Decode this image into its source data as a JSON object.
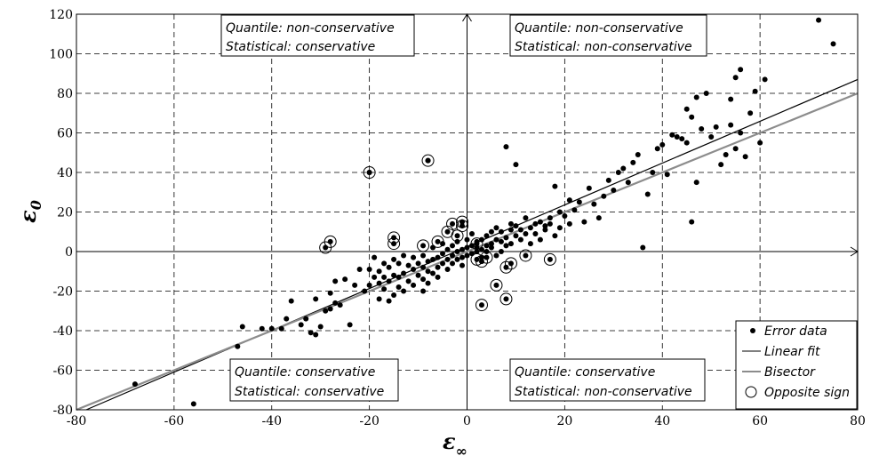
{
  "chart_data": {
    "type": "scatter",
    "xlabel": "ε",
    "xlabel_sub": "∞",
    "ylabel": "ε",
    "ylabel_sub": "0",
    "xlim": [
      -80,
      80
    ],
    "ylim": [
      -80,
      120
    ],
    "xticks": [
      -80,
      -60,
      -40,
      -20,
      0,
      20,
      40,
      60,
      80
    ],
    "yticks": [
      -80,
      -60,
      -40,
      -20,
      0,
      20,
      40,
      60,
      80,
      100,
      120
    ],
    "grid": true,
    "legend_position": "bottom-right",
    "legend": [
      "Error data",
      "Linear fit",
      "Bisector",
      "Opposite sign"
    ],
    "quadrant_labels": {
      "top_left": [
        "Quantile: non-conservative",
        "Statistical: conservative"
      ],
      "top_right": [
        "Quantile: non-conservative",
        "Statistical: non-conservative"
      ],
      "bottom_left": [
        "Quantile: conservative",
        "Statistical: conservative"
      ],
      "bottom_right": [
        "Quantile: conservative",
        "Statistical: non-conservative"
      ]
    },
    "series": [
      {
        "name": "Error data",
        "kind": "points",
        "color": "#000000",
        "points": [
          [
            -68,
            -67
          ],
          [
            -56,
            -77
          ],
          [
            -47,
            -48
          ],
          [
            -46,
            -38
          ],
          [
            -42,
            -39
          ],
          [
            -40,
            -39
          ],
          [
            -38,
            -39
          ],
          [
            -37,
            -34
          ],
          [
            -36,
            -25
          ],
          [
            -34,
            -37
          ],
          [
            -33,
            -34
          ],
          [
            -32,
            -41
          ],
          [
            -31,
            -42
          ],
          [
            -31,
            -24
          ],
          [
            -30,
            -38
          ],
          [
            -29,
            -30
          ],
          [
            -28,
            -29
          ],
          [
            -28,
            -21
          ],
          [
            -27,
            -26
          ],
          [
            -27,
            -15
          ],
          [
            -26,
            -27
          ],
          [
            -25,
            -14
          ],
          [
            -24,
            -37
          ],
          [
            -23,
            -17
          ],
          [
            -22,
            -9
          ],
          [
            -21,
            -20
          ],
          [
            -20,
            -17
          ],
          [
            -20,
            -9
          ],
          [
            -19,
            -3
          ],
          [
            -19,
            -13
          ],
          [
            -18,
            -24
          ],
          [
            -18,
            -16
          ],
          [
            -18,
            -10
          ],
          [
            -17,
            -19
          ],
          [
            -17,
            -13
          ],
          [
            -17,
            -6
          ],
          [
            -16,
            -25
          ],
          [
            -16,
            -15
          ],
          [
            -16,
            -8
          ],
          [
            -15,
            -22
          ],
          [
            -15,
            -12
          ],
          [
            -15,
            -4
          ],
          [
            -14,
            -18
          ],
          [
            -14,
            -13
          ],
          [
            -14,
            -6
          ],
          [
            -13,
            -20
          ],
          [
            -13,
            -11
          ],
          [
            -13,
            -2
          ],
          [
            -12,
            -15
          ],
          [
            -12,
            -7
          ],
          [
            -11,
            -17
          ],
          [
            -11,
            -9
          ],
          [
            -11,
            -3
          ],
          [
            -10,
            -12
          ],
          [
            -10,
            -6
          ],
          [
            -9,
            -20
          ],
          [
            -9,
            -14
          ],
          [
            -9,
            -8
          ],
          [
            -9,
            -2
          ],
          [
            -8,
            -10
          ],
          [
            -8,
            -5
          ],
          [
            -8,
            -16
          ],
          [
            -7,
            -11
          ],
          [
            -7,
            -4
          ],
          [
            -7,
            2
          ],
          [
            -6,
            -8
          ],
          [
            -6,
            -3
          ],
          [
            -6,
            -13
          ],
          [
            -5,
            -6
          ],
          [
            -5,
            -1
          ],
          [
            -5,
            4
          ],
          [
            -4,
            -9
          ],
          [
            -4,
            -4
          ],
          [
            -4,
            1
          ],
          [
            -3,
            -6
          ],
          [
            -3,
            -2
          ],
          [
            -3,
            3
          ],
          [
            -2,
            -4
          ],
          [
            -2,
            0
          ],
          [
            -2,
            5
          ],
          [
            -1,
            -3
          ],
          [
            -1,
            1
          ],
          [
            -1,
            -7
          ],
          [
            0,
            -2
          ],
          [
            0,
            2
          ],
          [
            0,
            6
          ],
          [
            1,
            -1
          ],
          [
            1,
            3
          ],
          [
            1,
            9
          ],
          [
            2,
            0
          ],
          [
            2,
            5
          ],
          [
            2,
            2
          ],
          [
            3,
            1
          ],
          [
            3,
            6
          ],
          [
            3,
            -3
          ],
          [
            4,
            3
          ],
          [
            4,
            8
          ],
          [
            4,
            0
          ],
          [
            5,
            4
          ],
          [
            5,
            10
          ],
          [
            5,
            2
          ],
          [
            6,
            6
          ],
          [
            6,
            12
          ],
          [
            6,
            -2
          ],
          [
            7,
            5
          ],
          [
            7,
            10
          ],
          [
            7,
            0
          ],
          [
            8,
            7
          ],
          [
            8,
            3
          ],
          [
            8,
            53
          ],
          [
            9,
            11
          ],
          [
            9,
            4
          ],
          [
            9,
            14
          ],
          [
            10,
            8
          ],
          [
            10,
            13
          ],
          [
            10,
            44
          ],
          [
            11,
            11
          ],
          [
            11,
            6
          ],
          [
            12,
            17
          ],
          [
            12,
            9
          ],
          [
            13,
            12
          ],
          [
            13,
            4
          ],
          [
            14,
            14
          ],
          [
            14,
            9
          ],
          [
            15,
            15
          ],
          [
            15,
            6
          ],
          [
            16,
            13
          ],
          [
            16,
            11
          ],
          [
            17,
            17
          ],
          [
            17,
            14
          ],
          [
            18,
            33
          ],
          [
            18,
            8
          ],
          [
            19,
            20
          ],
          [
            19,
            12
          ],
          [
            20,
            18
          ],
          [
            21,
            26
          ],
          [
            21,
            14
          ],
          [
            22,
            21
          ],
          [
            23,
            25
          ],
          [
            24,
            15
          ],
          [
            25,
            32
          ],
          [
            26,
            24
          ],
          [
            27,
            17
          ],
          [
            28,
            28
          ],
          [
            29,
            36
          ],
          [
            30,
            31
          ],
          [
            31,
            40
          ],
          [
            32,
            42
          ],
          [
            33,
            35
          ],
          [
            34,
            45
          ],
          [
            35,
            49
          ],
          [
            36,
            2
          ],
          [
            37,
            29
          ],
          [
            38,
            40
          ],
          [
            39,
            52
          ],
          [
            40,
            54
          ],
          [
            41,
            39
          ],
          [
            42,
            59
          ],
          [
            43,
            58
          ],
          [
            44,
            57
          ],
          [
            45,
            72
          ],
          [
            45,
            55
          ],
          [
            46,
            15
          ],
          [
            46,
            68
          ],
          [
            47,
            35
          ],
          [
            47,
            78
          ],
          [
            48,
            62
          ],
          [
            49,
            80
          ],
          [
            50,
            58
          ],
          [
            51,
            63
          ],
          [
            52,
            44
          ],
          [
            53,
            49
          ],
          [
            54,
            64
          ],
          [
            54,
            77
          ],
          [
            55,
            88
          ],
          [
            55,
            52
          ],
          [
            56,
            92
          ],
          [
            56,
            60
          ],
          [
            57,
            48
          ],
          [
            58,
            70
          ],
          [
            59,
            81
          ],
          [
            60,
            55
          ],
          [
            61,
            87
          ],
          [
            72,
            117
          ],
          [
            75,
            105
          ],
          [
            -20,
            40
          ],
          [
            -8,
            46
          ]
        ]
      },
      {
        "name": "Opposite sign",
        "kind": "circles",
        "color": "#000000",
        "points": [
          [
            -29,
            2
          ],
          [
            -28,
            5
          ],
          [
            -15,
            7
          ],
          [
            -15,
            4
          ],
          [
            -20,
            40
          ],
          [
            -8,
            46
          ],
          [
            -9,
            3
          ],
          [
            -6,
            5
          ],
          [
            -4,
            10
          ],
          [
            -3,
            14
          ],
          [
            -2,
            8
          ],
          [
            -1,
            15
          ],
          [
            -1,
            13
          ],
          [
            2,
            -4
          ],
          [
            3,
            -5
          ],
          [
            3,
            -27
          ],
          [
            4,
            -3
          ],
          [
            6,
            -17
          ],
          [
            8,
            -8
          ],
          [
            8,
            -24
          ],
          [
            9,
            -6
          ],
          [
            12,
            -2
          ],
          [
            17,
            -4
          ],
          [
            2,
            4
          ]
        ]
      },
      {
        "name": "Linear fit",
        "kind": "line",
        "color": "#000000",
        "points": [
          [
            -78,
            -80
          ],
          [
            80,
            87
          ]
        ]
      },
      {
        "name": "Bisector",
        "kind": "line",
        "color": "#8c8c8c",
        "points": [
          [
            -80,
            -80
          ],
          [
            80,
            80
          ]
        ]
      }
    ]
  }
}
